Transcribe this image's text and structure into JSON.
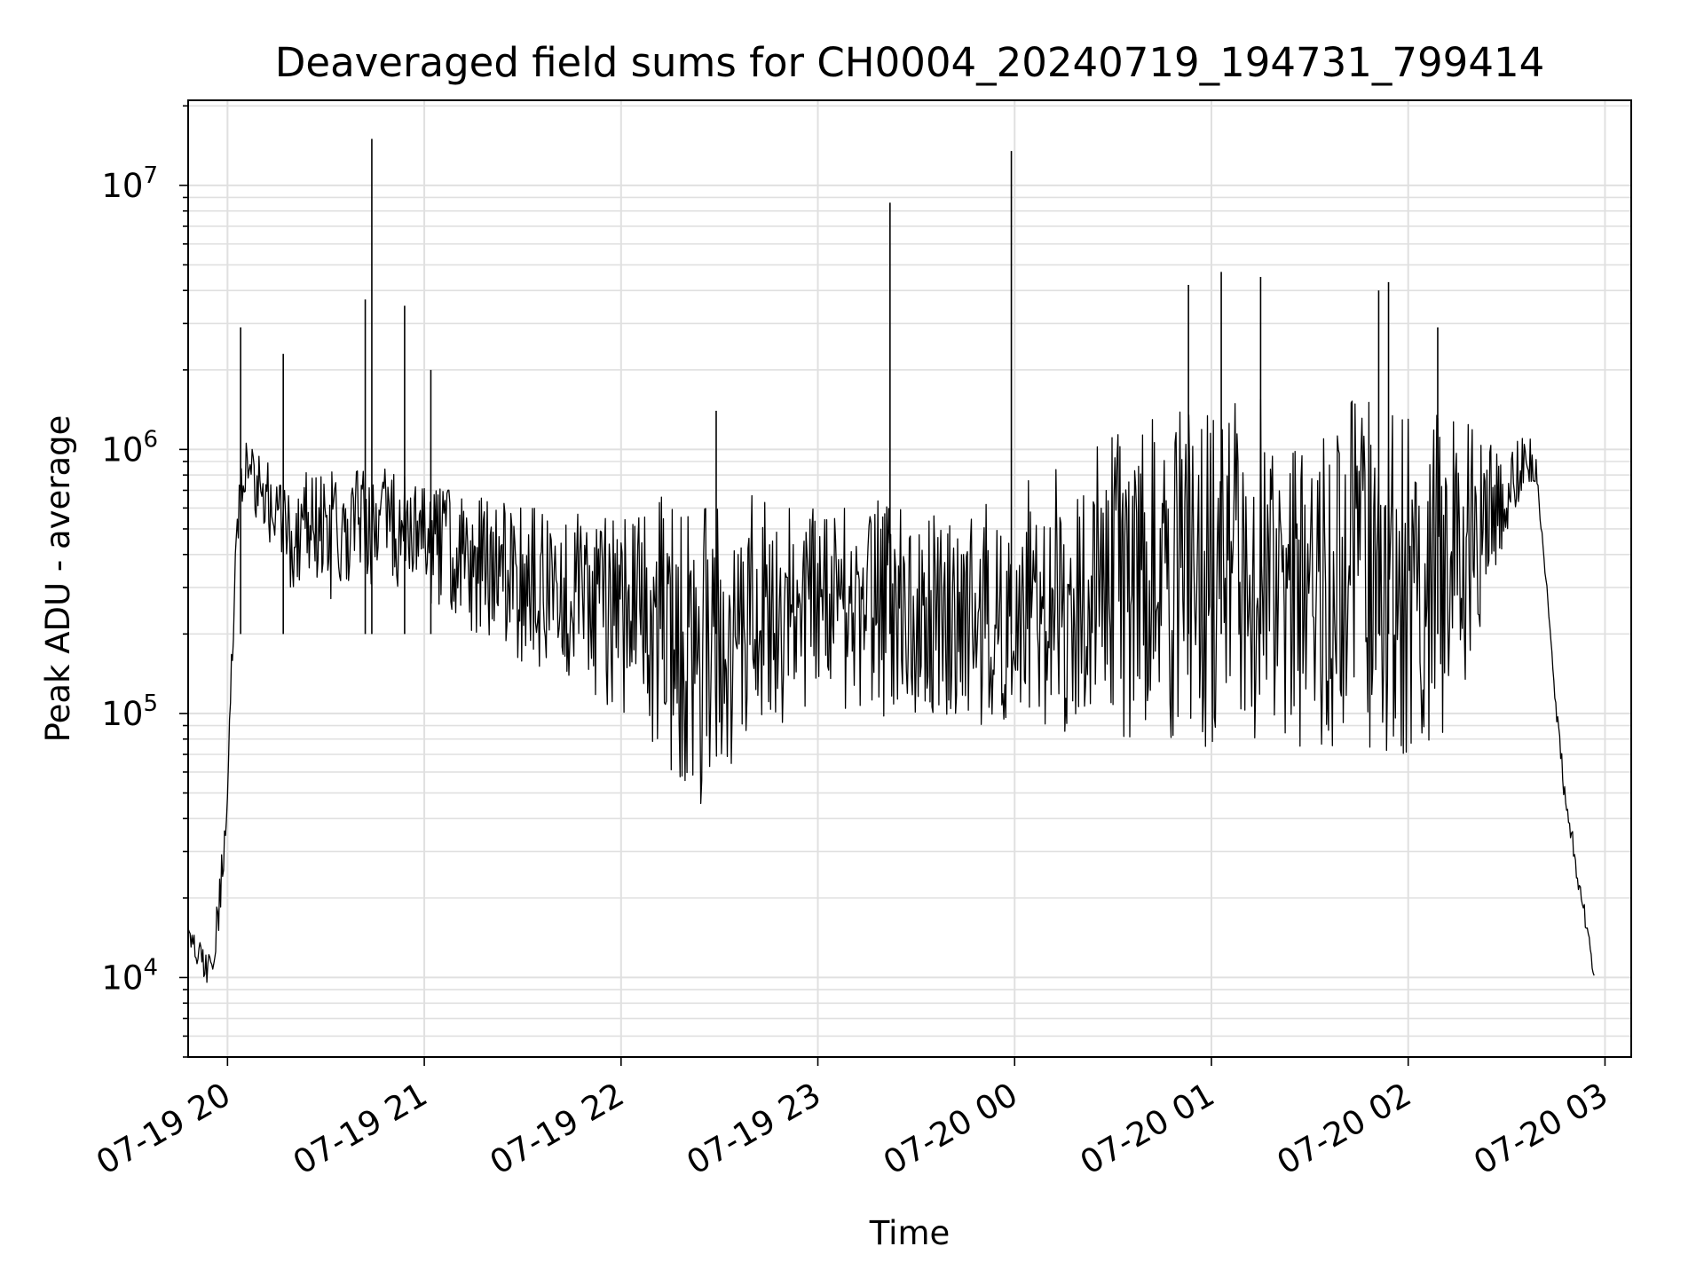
{
  "chart_data": {
    "type": "line",
    "title": "Deaveraged field sums for CH0004_20240719_194731_799414",
    "xlabel": "Time",
    "ylabel": "Peak ADU - average",
    "yscale": "log",
    "ylim": [
      5000,
      21000000
    ],
    "xlim": [
      "2024-07-19 19:48",
      "2024-07-20 03:08"
    ],
    "grid": true,
    "grid_minor": true,
    "line_color": "#000000",
    "grid_color": "#e0e0e0",
    "x_ticks": [
      {
        "t": "2024-07-19 20:00",
        "label": "07-19 20"
      },
      {
        "t": "2024-07-19 21:00",
        "label": "07-19 21"
      },
      {
        "t": "2024-07-19 22:00",
        "label": "07-19 22"
      },
      {
        "t": "2024-07-19 23:00",
        "label": "07-19 23"
      },
      {
        "t": "2024-07-20 00:00",
        "label": "07-20 00"
      },
      {
        "t": "2024-07-20 01:00",
        "label": "07-20 01"
      },
      {
        "t": "2024-07-20 02:00",
        "label": "07-20 02"
      },
      {
        "t": "2024-07-20 03:00",
        "label": "07-20 03"
      }
    ],
    "y_ticks": [
      {
        "value": 10000,
        "base": "10",
        "exp": "4"
      },
      {
        "value": 100000,
        "base": "10",
        "exp": "5"
      },
      {
        "value": 1000000,
        "base": "10",
        "exp": "6"
      },
      {
        "value": 10000000,
        "base": "10",
        "exp": "7"
      }
    ],
    "x": [
      "2024-07-19 19:48",
      "2024-07-19 19:51",
      "2024-07-19 19:54",
      "2024-07-19 19:57",
      "2024-07-19 20:00",
      "2024-07-19 20:03",
      "2024-07-19 20:06",
      "2024-07-19 20:09",
      "2024-07-19 20:12",
      "2024-07-19 20:15",
      "2024-07-19 20:18",
      "2024-07-19 20:21",
      "2024-07-19 20:24",
      "2024-07-19 20:27",
      "2024-07-19 20:30",
      "2024-07-19 20:33",
      "2024-07-19 20:36",
      "2024-07-19 20:39",
      "2024-07-19 20:42",
      "2024-07-19 20:45",
      "2024-07-19 20:48",
      "2024-07-19 20:51",
      "2024-07-19 20:54",
      "2024-07-19 20:57",
      "2024-07-19 21:00",
      "2024-07-19 21:03",
      "2024-07-19 21:06",
      "2024-07-19 21:09",
      "2024-07-19 21:12",
      "2024-07-19 21:15",
      "2024-07-19 21:18",
      "2024-07-19 21:21",
      "2024-07-19 21:24",
      "2024-07-19 21:27",
      "2024-07-19 21:30",
      "2024-07-19 21:33",
      "2024-07-19 21:36",
      "2024-07-19 21:39",
      "2024-07-19 21:42",
      "2024-07-19 21:45",
      "2024-07-19 21:48",
      "2024-07-19 21:51",
      "2024-07-19 21:54",
      "2024-07-19 21:57",
      "2024-07-19 22:00",
      "2024-07-19 22:03",
      "2024-07-19 22:06",
      "2024-07-19 22:09",
      "2024-07-19 22:12",
      "2024-07-19 22:15",
      "2024-07-19 22:18",
      "2024-07-19 22:21",
      "2024-07-19 22:24",
      "2024-07-19 22:27",
      "2024-07-19 22:30",
      "2024-07-19 22:33",
      "2024-07-19 22:36",
      "2024-07-19 22:39",
      "2024-07-19 22:42",
      "2024-07-19 22:45",
      "2024-07-19 22:48",
      "2024-07-19 22:51",
      "2024-07-19 22:54",
      "2024-07-19 22:57",
      "2024-07-19 23:00",
      "2024-07-19 23:03",
      "2024-07-19 23:06",
      "2024-07-19 23:09",
      "2024-07-19 23:12",
      "2024-07-19 23:15",
      "2024-07-19 23:18",
      "2024-07-19 23:21",
      "2024-07-19 23:24",
      "2024-07-19 23:27",
      "2024-07-19 23:30",
      "2024-07-19 23:33",
      "2024-07-19 23:36",
      "2024-07-19 23:39",
      "2024-07-19 23:42",
      "2024-07-19 23:45",
      "2024-07-19 23:48",
      "2024-07-19 23:51",
      "2024-07-19 23:54",
      "2024-07-19 23:57",
      "2024-07-20 00:00",
      "2024-07-20 00:03",
      "2024-07-20 00:06",
      "2024-07-20 00:09",
      "2024-07-20 00:12",
      "2024-07-20 00:15",
      "2024-07-20 00:18",
      "2024-07-20 00:21",
      "2024-07-20 00:24",
      "2024-07-20 00:27",
      "2024-07-20 00:30",
      "2024-07-20 00:33",
      "2024-07-20 00:36",
      "2024-07-20 00:39",
      "2024-07-20 00:42",
      "2024-07-20 00:45",
      "2024-07-20 00:48",
      "2024-07-20 00:51",
      "2024-07-20 00:54",
      "2024-07-20 00:57",
      "2024-07-20 01:00",
      "2024-07-20 01:03",
      "2024-07-20 01:06",
      "2024-07-20 01:09",
      "2024-07-20 01:12",
      "2024-07-20 01:15",
      "2024-07-20 01:18",
      "2024-07-20 01:21",
      "2024-07-20 01:24",
      "2024-07-20 01:27",
      "2024-07-20 01:30",
      "2024-07-20 01:33",
      "2024-07-20 01:36",
      "2024-07-20 01:39",
      "2024-07-20 01:42",
      "2024-07-20 01:45",
      "2024-07-20 01:48",
      "2024-07-20 01:51",
      "2024-07-20 01:54",
      "2024-07-20 01:57",
      "2024-07-20 02:00",
      "2024-07-20 02:03",
      "2024-07-20 02:06",
      "2024-07-20 02:09",
      "2024-07-20 02:12",
      "2024-07-20 02:15",
      "2024-07-20 02:18",
      "2024-07-20 02:21",
      "2024-07-20 02:24",
      "2024-07-20 02:27",
      "2024-07-20 02:30",
      "2024-07-20 02:33",
      "2024-07-20 02:36",
      "2024-07-20 02:39",
      "2024-07-20 02:42",
      "2024-07-20 02:45",
      "2024-07-20 02:48",
      "2024-07-20 02:51",
      "2024-07-20 02:54",
      "2024-07-20 02:57",
      "2024-07-20 03:00",
      "2024-07-20 03:03",
      "2024-07-20 03:06",
      "2024-07-20 03:08"
    ],
    "series": [
      {
        "name": "",
        "values_low": [
          14000,
          11000,
          9000,
          12000,
          40000,
          400000,
          600000,
          500000,
          400000,
          350000,
          300000,
          300000,
          350000,
          300000,
          250000,
          250000,
          300000,
          350000,
          300000,
          300000,
          300000,
          300000,
          300000,
          300000,
          280000,
          250000,
          250000,
          220000,
          200000,
          200000,
          200000,
          180000,
          180000,
          170000,
          150000,
          150000,
          150000,
          140000,
          140000,
          130000,
          130000,
          120000,
          110000,
          100000,
          100000,
          95000,
          90000,
          80000,
          70000,
          60000,
          50000,
          50000,
          45000,
          45000,
          50000,
          60000,
          70000,
          80000,
          85000,
          90000,
          90000,
          95000,
          100000,
          100000,
          100000,
          100000,
          100000,
          100000,
          95000,
          90000,
          90000,
          85000,
          85000,
          85000,
          85000,
          90000,
          90000,
          90000,
          90000,
          90000,
          90000,
          90000,
          90000,
          90000,
          90000,
          90000,
          90000,
          90000,
          90000,
          85000,
          85000,
          85000,
          85000,
          80000,
          80000,
          80000,
          80000,
          80000,
          80000,
          80000,
          80000,
          80000,
          80000,
          75000,
          75000,
          75000,
          75000,
          75000,
          75000,
          75000,
          75000,
          75000,
          75000,
          75000,
          75000,
          75000,
          75000,
          75000,
          75000,
          75000,
          75000,
          70000,
          70000,
          70000,
          70000,
          70000,
          70000,
          75000,
          80000,
          90000,
          120000,
          180000,
          250000,
          350000,
          450000,
          550000,
          700000,
          700000,
          350000,
          100000,
          40000,
          25000,
          15000,
          9000
        ],
        "values_high": [
          16000,
          14000,
          12000,
          20000,
          60000,
          900000,
          1200000,
          1000000,
          900000,
          800000,
          800000,
          800000,
          850000,
          850000,
          900000,
          900000,
          900000,
          900000,
          900000,
          850000,
          850000,
          800000,
          800000,
          800000,
          800000,
          750000,
          750000,
          700000,
          700000,
          700000,
          700000,
          650000,
          650000,
          650000,
          600000,
          600000,
          600000,
          600000,
          600000,
          600000,
          600000,
          550000,
          550000,
          550000,
          600000,
          600000,
          650000,
          650000,
          700000,
          700000,
          700000,
          700000,
          700000,
          700000,
          700000,
          700000,
          700000,
          700000,
          700000,
          700000,
          700000,
          700000,
          700000,
          700000,
          650000,
          650000,
          650000,
          650000,
          650000,
          650000,
          650000,
          650000,
          650000,
          650000,
          650000,
          650000,
          650000,
          650000,
          650000,
          650000,
          650000,
          650000,
          650000,
          700000,
          700000,
          750000,
          800000,
          850000,
          900000,
          950000,
          1000000,
          1050000,
          1100000,
          1150000,
          1200000,
          1250000,
          1300000,
          1350000,
          1400000,
          1400000,
          1400000,
          1450000,
          1450000,
          1450000,
          1500000,
          1500000,
          1500000,
          1500000,
          1550000,
          1550000,
          1550000,
          1550000,
          1600000,
          1600000,
          1600000,
          1600000,
          1600000,
          1600000,
          1600000,
          1600000,
          1600000,
          1600000,
          1600000,
          1600000,
          1600000,
          1600000,
          1600000,
          1550000,
          1500000,
          1400000,
          1300000,
          1200000,
          1100000,
          1000000,
          900000,
          1100000,
          1300000,
          1000000,
          300000,
          120000,
          60000,
          30000,
          18000,
          10000
        ],
        "spikes": [
          {
            "x": "2024-07-19 20:04",
            "y": 2900000
          },
          {
            "x": "2024-07-19 20:17",
            "y": 2300000
          },
          {
            "x": "2024-07-19 20:42",
            "y": 3700000
          },
          {
            "x": "2024-07-19 20:44",
            "y": 15000000
          },
          {
            "x": "2024-07-19 20:54",
            "y": 3500000
          },
          {
            "x": "2024-07-19 21:02",
            "y": 2000000
          },
          {
            "x": "2024-07-19 22:29",
            "y": 1400000
          },
          {
            "x": "2024-07-19 23:22",
            "y": 8600000
          },
          {
            "x": "2024-07-19 23:59",
            "y": 13500000
          },
          {
            "x": "2024-07-20 00:53",
            "y": 4200000
          },
          {
            "x": "2024-07-20 01:03",
            "y": 4700000
          },
          {
            "x": "2024-07-20 01:15",
            "y": 4500000
          },
          {
            "x": "2024-07-20 01:51",
            "y": 4000000
          },
          {
            "x": "2024-07-20 01:54",
            "y": 4300000
          },
          {
            "x": "2024-07-20 02:09",
            "y": 2900000
          }
        ]
      }
    ]
  }
}
